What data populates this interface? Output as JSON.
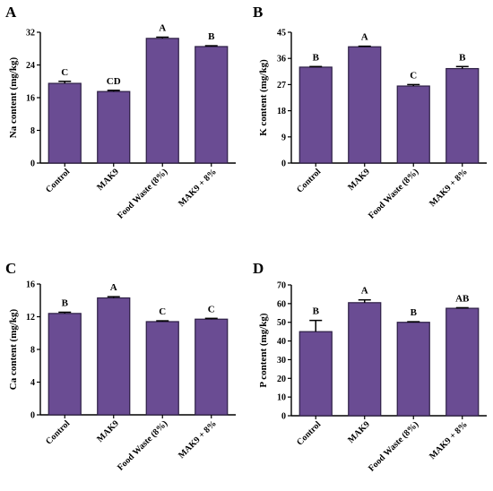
{
  "figure": {
    "bar_color": "#6a4c93",
    "axis_color": "#000000"
  },
  "chart_data": [
    {
      "panel": "A",
      "type": "bar",
      "categories": [
        "Control",
        "MAK9",
        "Food Waste (8%)",
        "MAK9 + 8%"
      ],
      "values": [
        19.5,
        17.5,
        30.5,
        28.5
      ],
      "errors": [
        0.5,
        0.3,
        0.3,
        0.2
      ],
      "letters": [
        "C",
        "CD",
        "A",
        "B"
      ],
      "ylabel": "Na content (mg/kg)",
      "ylim": [
        0,
        32
      ],
      "yticks": [
        0,
        8,
        16,
        24,
        32
      ]
    },
    {
      "panel": "B",
      "type": "bar",
      "categories": [
        "Control",
        "MAK9",
        "Food Waste (8%)",
        "MAK9 + 8%"
      ],
      "values": [
        33,
        40,
        26.5,
        32.5
      ],
      "errors": [
        0.2,
        0.2,
        0.5,
        0.7
      ],
      "letters": [
        "B",
        "A",
        "C",
        "B"
      ],
      "ylabel": "K content (mg/kg)",
      "ylim": [
        0,
        45
      ],
      "yticks": [
        0,
        9,
        18,
        27,
        36,
        45
      ]
    },
    {
      "panel": "C",
      "type": "bar",
      "categories": [
        "Control",
        "MAK9",
        "Food Waste (8%)",
        "MAK9 + 8%"
      ],
      "values": [
        12.4,
        14.3,
        11.4,
        11.7
      ],
      "errors": [
        0.15,
        0.15,
        0.1,
        0.1
      ],
      "letters": [
        "B",
        "A",
        "C",
        "C"
      ],
      "ylabel": "Ca content (mg/kg)",
      "ylim": [
        0,
        16
      ],
      "yticks": [
        0,
        4,
        8,
        12,
        16
      ]
    },
    {
      "panel": "D",
      "type": "bar",
      "categories": [
        "Control",
        "MAK9",
        "Food Waste (8%)",
        "MAK9 + 8%"
      ],
      "values": [
        45,
        60.5,
        50,
        57.5
      ],
      "errors": [
        6,
        1.5,
        0.3,
        0.3
      ],
      "letters": [
        "B",
        "A",
        "B",
        "AB"
      ],
      "ylabel": "P content (mg/kg)",
      "ylim": [
        0,
        70
      ],
      "yticks": [
        0,
        10,
        20,
        30,
        40,
        50,
        60,
        70
      ]
    }
  ]
}
